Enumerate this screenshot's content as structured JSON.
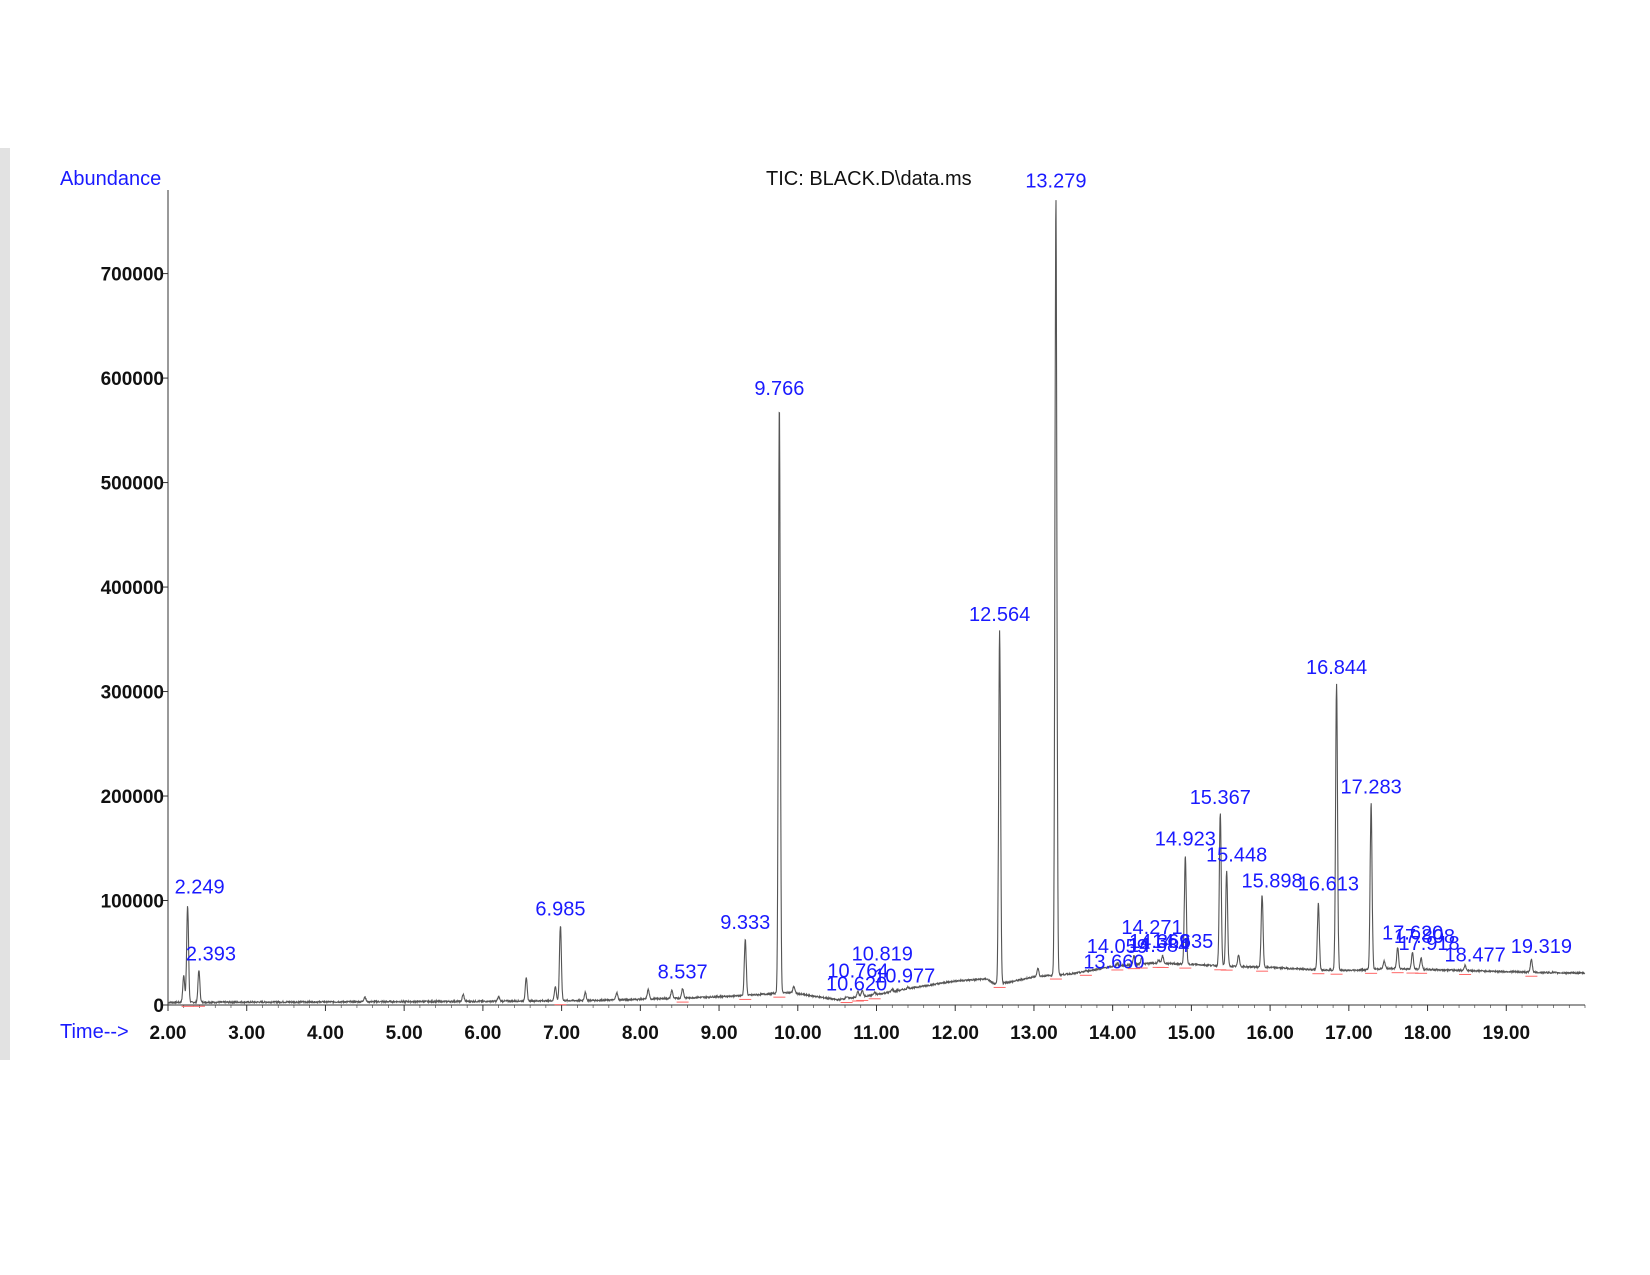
{
  "chart_data": {
    "type": "line",
    "title": "TIC: BLACK.D\\data.ms",
    "ylabel": "Abundance",
    "xlabel": "Time-->",
    "xlim": [
      2.0,
      20.0
    ],
    "ylim": [
      0,
      780000
    ],
    "x_ticks": [
      "2.00",
      "3.00",
      "4.00",
      "5.00",
      "6.00",
      "7.00",
      "8.00",
      "9.00",
      "10.00",
      "11.00",
      "12.00",
      "13.00",
      "14.00",
      "15.00",
      "16.00",
      "17.00",
      "18.00",
      "19.00"
    ],
    "y_ticks": [
      "0",
      "100000",
      "200000",
      "300000",
      "400000",
      "500000",
      "600000",
      "700000"
    ],
    "grid": false,
    "series": [
      {
        "baseline": [
          [
            2.0,
            2500
          ],
          [
            6.0,
            3500
          ],
          [
            7.5,
            4500
          ],
          [
            8.5,
            6500
          ],
          [
            9.3,
            9000
          ],
          [
            9.9,
            12000
          ],
          [
            10.5,
            5000
          ],
          [
            11.0,
            10000
          ],
          [
            11.5,
            17000
          ],
          [
            12.0,
            23000
          ],
          [
            12.4,
            25000
          ],
          [
            12.5,
            20000
          ],
          [
            12.7,
            22000
          ],
          [
            13.0,
            27000
          ],
          [
            13.5,
            30000
          ],
          [
            14.0,
            37000
          ],
          [
            14.5,
            40000
          ],
          [
            15.0,
            39000
          ],
          [
            15.5,
            37000
          ],
          [
            16.0,
            36000
          ],
          [
            16.5,
            34000
          ],
          [
            17.0,
            33000
          ],
          [
            17.5,
            35000
          ],
          [
            18.0,
            34000
          ],
          [
            18.5,
            33000
          ],
          [
            19.0,
            32000
          ],
          [
            19.5,
            31000
          ],
          [
            20.0,
            30500
          ]
        ],
        "peaks": [
          {
            "label": "2.249",
            "rt": 2.249,
            "height": 95000
          },
          {
            "label": "2.393",
            "rt": 2.393,
            "height": 33000
          },
          {
            "label": "6.985",
            "rt": 6.985,
            "height": 76000
          },
          {
            "label": "8.537",
            "rt": 8.537,
            "height": 16000
          },
          {
            "label": "9.333",
            "rt": 9.333,
            "height": 63000
          },
          {
            "label": "9.766",
            "rt": 9.766,
            "height": 574000
          },
          {
            "label": "10.620",
            "rt": 10.62,
            "height": 8000
          },
          {
            "label": "10.764",
            "rt": 10.764,
            "height": 13000
          },
          {
            "label": "10.819",
            "rt": 10.819,
            "height": 14000
          },
          {
            "label": "10.977",
            "rt": 10.977,
            "height": 12000
          },
          {
            "label": "12.564",
            "rt": 12.564,
            "height": 358000
          },
          {
            "label": "13.279",
            "rt": 13.279,
            "height": 773000
          },
          {
            "label": "13.660",
            "rt": 13.66,
            "height": 33000
          },
          {
            "label": "14.059",
            "rt": 14.059,
            "height": 40000
          },
          {
            "label": "14.271",
            "rt": 14.271,
            "height": 47000
          },
          {
            "label": "14.369",
            "rt": 14.369,
            "height": 45000
          },
          {
            "label": "14.584",
            "rt": 14.584,
            "height": 43000
          },
          {
            "label": "14.635",
            "rt": 14.635,
            "height": 47000
          },
          {
            "label": "14.923",
            "rt": 14.923,
            "height": 143000
          },
          {
            "label": "15.367",
            "rt": 15.367,
            "height": 183000
          },
          {
            "label": "15.448",
            "rt": 15.448,
            "height": 128000
          },
          {
            "label": "15.898",
            "rt": 15.898,
            "height": 105000
          },
          {
            "label": "16.613",
            "rt": 16.613,
            "height": 98000
          },
          {
            "label": "16.844",
            "rt": 16.844,
            "height": 307000
          },
          {
            "label": "17.283",
            "rt": 17.283,
            "height": 193000
          },
          {
            "label": "17.620",
            "rt": 17.62,
            "height": 55000
          },
          {
            "label": "17.808",
            "rt": 17.808,
            "height": 50000
          },
          {
            "label": "17.918",
            "rt": 17.918,
            "height": 45000
          },
          {
            "label": "18.477",
            "rt": 18.477,
            "height": 38000
          },
          {
            "label": "19.319",
            "rt": 19.319,
            "height": 44000
          }
        ],
        "minor_peaks": [
          [
            2.2,
            28000
          ],
          [
            4.5,
            8000
          ],
          [
            5.75,
            10000
          ],
          [
            6.2,
            8000
          ],
          [
            6.55,
            26000
          ],
          [
            6.92,
            18000
          ],
          [
            7.3,
            12000
          ],
          [
            7.7,
            12000
          ],
          [
            8.1,
            15000
          ],
          [
            8.4,
            14000
          ],
          [
            9.95,
            18000
          ],
          [
            11.2,
            15000
          ],
          [
            11.4,
            17000
          ],
          [
            13.05,
            35000
          ],
          [
            15.6,
            48000
          ],
          [
            17.45,
            42000
          ]
        ]
      }
    ]
  }
}
